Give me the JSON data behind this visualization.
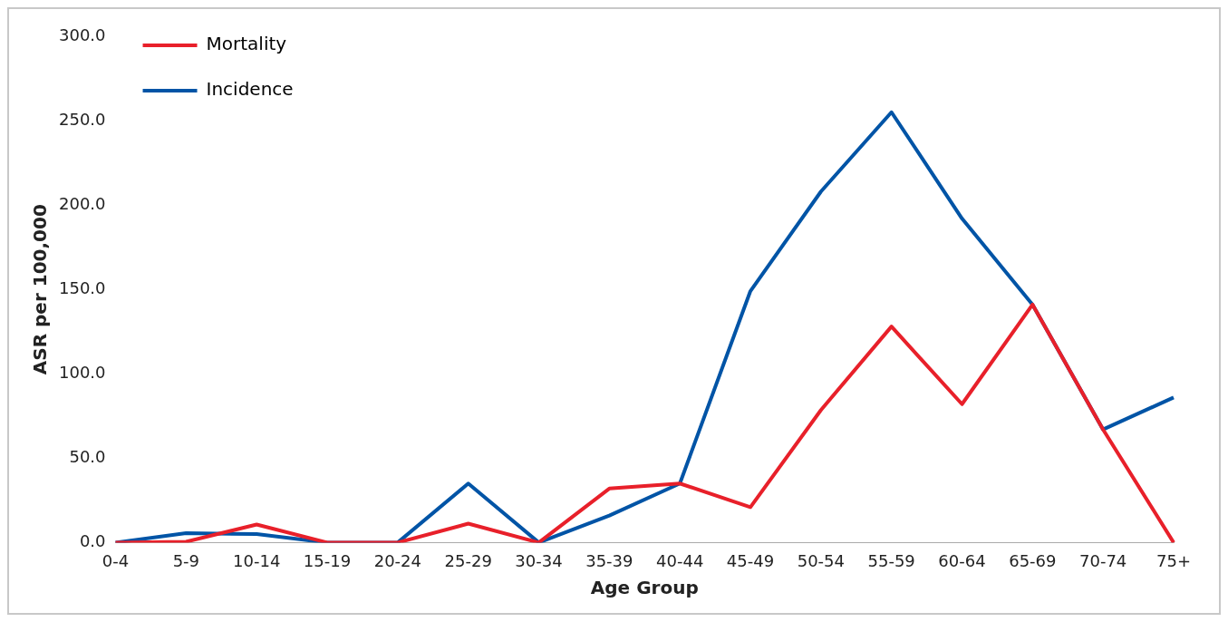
{
  "chart_data": {
    "type": "line",
    "xlabel": "Age Group",
    "ylabel": "ASR per 100,000",
    "categories": [
      "0-4",
      "5-9",
      "10-14",
      "15-19",
      "20-24",
      "25-29",
      "30-34",
      "35-39",
      "40-44",
      "45-49",
      "50-54",
      "55-59",
      "60-64",
      "65-69",
      "70-74",
      "75+"
    ],
    "series": [
      {
        "name": "Mortality",
        "color": "#e8202a",
        "values": [
          0,
          0.5,
          10.7,
          0,
          0,
          11.2,
          0,
          32,
          35,
          21,
          78.5,
          128,
          82,
          141,
          67,
          0
        ]
      },
      {
        "name": "Incidence",
        "color": "#0054a6",
        "values": [
          0,
          5.6,
          5,
          0,
          0,
          35,
          0,
          16,
          35,
          149,
          208,
          255,
          192,
          141,
          67,
          86
        ]
      }
    ],
    "ylim": [
      0,
      300
    ],
    "yticks": [
      {
        "value": 0,
        "label": "0.0"
      },
      {
        "value": 50,
        "label": "50.0"
      },
      {
        "value": 100,
        "label": "100.0"
      },
      {
        "value": 150,
        "label": "150.0"
      },
      {
        "value": 200,
        "label": "200.0"
      },
      {
        "value": 250,
        "label": "250.0"
      },
      {
        "value": 300,
        "label": "300.0"
      }
    ],
    "grid": false,
    "legend": "top left",
    "marker": "none",
    "line_style": "solid"
  }
}
